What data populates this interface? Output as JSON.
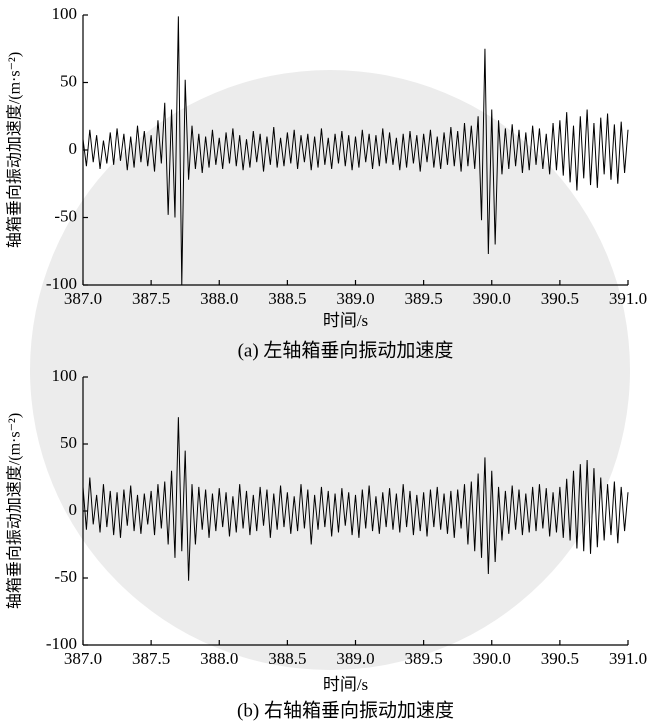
{
  "chart_data": [
    {
      "type": "line",
      "caption": "(a) 左轴箱垂向振动加速度",
      "xlabel": "时间/s",
      "ylabel": "轴箱垂向振动加速度/(m·s⁻²)",
      "color": "#000000",
      "xlim": [
        387,
        391
      ],
      "ylim": [
        -100,
        100
      ],
      "xticks": [
        {
          "value": 387,
          "label": "387.0"
        },
        387.5,
        {
          "value": 388,
          "label": "388.0"
        },
        388.5,
        {
          "value": 389,
          "label": "389.0"
        },
        389.5,
        {
          "value": 390,
          "label": "390.0"
        },
        390.5,
        {
          "value": 391,
          "label": "391.0"
        }
      ],
      "yticks": [
        -100,
        -50,
        0,
        50,
        100
      ],
      "x": [
        387,
        387.025,
        387.05,
        387.075,
        387.1,
        387.125,
        387.15,
        387.175,
        387.2,
        387.225,
        387.25,
        387.275,
        387.3,
        387.325,
        387.35,
        387.375,
        387.4,
        387.425,
        387.45,
        387.475,
        387.5,
        387.525,
        387.55,
        387.575,
        387.6,
        387.625,
        387.65,
        387.675,
        387.7,
        387.725,
        387.75,
        387.775,
        387.8,
        387.825,
        387.85,
        387.875,
        387.9,
        387.925,
        387.95,
        387.975,
        388,
        388.025,
        388.05,
        388.075,
        388.1,
        388.125,
        388.15,
        388.175,
        388.2,
        388.225,
        388.25,
        388.275,
        388.3,
        388.325,
        388.35,
        388.375,
        388.4,
        388.425,
        388.45,
        388.475,
        388.5,
        388.525,
        388.55,
        388.575,
        388.6,
        388.625,
        388.65,
        388.675,
        388.7,
        388.725,
        388.75,
        388.775,
        388.8,
        388.825,
        388.85,
        388.875,
        388.9,
        388.925,
        388.95,
        388.975,
        389,
        389.025,
        389.05,
        389.075,
        389.1,
        389.125,
        389.15,
        389.175,
        389.2,
        389.225,
        389.25,
        389.275,
        389.3,
        389.325,
        389.35,
        389.375,
        389.4,
        389.425,
        389.45,
        389.475,
        389.5,
        389.525,
        389.55,
        389.575,
        389.6,
        389.625,
        389.65,
        389.675,
        389.7,
        389.725,
        389.75,
        389.775,
        389.8,
        389.825,
        389.85,
        389.875,
        389.9,
        389.925,
        389.95,
        389.975,
        390,
        390.025,
        390.05,
        390.075,
        390.1,
        390.125,
        390.15,
        390.175,
        390.2,
        390.225,
        390.25,
        390.275,
        390.3,
        390.325,
        390.35,
        390.375,
        390.4,
        390.425,
        390.45,
        390.475,
        390.5,
        390.525,
        390.55,
        390.575,
        390.6,
        390.625,
        390.65,
        390.675,
        390.7,
        390.725,
        390.75,
        390.775,
        390.8,
        390.825,
        390.85,
        390.875,
        390.9,
        390.925,
        390.95,
        390.975,
        391
      ],
      "values": [
        8,
        -12,
        15,
        -9,
        11,
        -14,
        7,
        -10,
        13,
        -11,
        16,
        -8,
        12,
        -15,
        10,
        -13,
        18,
        -9,
        14,
        -12,
        11,
        -16,
        22,
        -10,
        35,
        -48,
        30,
        -50,
        99,
        -100,
        52,
        -22,
        18,
        -14,
        12,
        -17,
        10,
        -13,
        15,
        -11,
        9,
        -14,
        13,
        -10,
        16,
        -12,
        11,
        -15,
        8,
        -13,
        14,
        -9,
        12,
        -16,
        10,
        -11,
        17,
        -13,
        9,
        -12,
        13,
        -10,
        15,
        -14,
        11,
        -9,
        12,
        -15,
        10,
        -13,
        16,
        -11,
        9,
        -14,
        12,
        -10,
        14,
        -12,
        11,
        -15,
        10,
        -13,
        15,
        -9,
        12,
        -14,
        11,
        -12,
        16,
        -10,
        13,
        -11,
        9,
        -15,
        12,
        -13,
        14,
        -10,
        11,
        -16,
        12,
        -9,
        15,
        -13,
        10,
        -14,
        13,
        -11,
        17,
        -12,
        14,
        -16,
        20,
        -12,
        18,
        -14,
        25,
        -52,
        75,
        -77,
        30,
        -70,
        22,
        -18,
        16,
        -14,
        19,
        -12,
        15,
        -17,
        13,
        -15,
        18,
        -11,
        16,
        -14,
        12,
        -18,
        20,
        -15,
        22,
        -19,
        28,
        -24,
        18,
        -30,
        25,
        -21,
        30,
        -26,
        20,
        -28,
        24,
        -18,
        27,
        -22,
        19,
        -25,
        21,
        -17,
        15
      ]
    },
    {
      "type": "line",
      "caption": "(b) 右轴箱垂向振动加速度",
      "xlabel": "时间/s",
      "ylabel": "轴箱垂向振动加速度/(m·s⁻²)",
      "color": "#000000",
      "xlim": [
        387,
        391
      ],
      "ylim": [
        -100,
        100
      ],
      "xticks": [
        {
          "value": 387,
          "label": "387.0"
        },
        387.5,
        {
          "value": 388,
          "label": "388.0"
        },
        388.5,
        {
          "value": 389,
          "label": "389.0"
        },
        389.5,
        {
          "value": 390,
          "label": "390.0"
        },
        390.5,
        {
          "value": 391,
          "label": "391.0"
        }
      ],
      "yticks": [
        -100,
        -50,
        0,
        50,
        100
      ],
      "x": [
        387,
        387.025,
        387.05,
        387.075,
        387.1,
        387.125,
        387.15,
        387.175,
        387.2,
        387.225,
        387.25,
        387.275,
        387.3,
        387.325,
        387.35,
        387.375,
        387.4,
        387.425,
        387.45,
        387.475,
        387.5,
        387.525,
        387.55,
        387.575,
        387.6,
        387.625,
        387.65,
        387.675,
        387.7,
        387.725,
        387.75,
        387.775,
        387.8,
        387.825,
        387.85,
        387.875,
        387.9,
        387.925,
        387.95,
        387.975,
        388,
        388.025,
        388.05,
        388.075,
        388.1,
        388.125,
        388.15,
        388.175,
        388.2,
        388.225,
        388.25,
        388.275,
        388.3,
        388.325,
        388.35,
        388.375,
        388.4,
        388.425,
        388.45,
        388.475,
        388.5,
        388.525,
        388.55,
        388.575,
        388.6,
        388.625,
        388.65,
        388.675,
        388.7,
        388.725,
        388.75,
        388.775,
        388.8,
        388.825,
        388.85,
        388.875,
        388.9,
        388.925,
        388.95,
        388.975,
        389,
        389.025,
        389.05,
        389.075,
        389.1,
        389.125,
        389.15,
        389.175,
        389.2,
        389.225,
        389.25,
        389.275,
        389.3,
        389.325,
        389.35,
        389.375,
        389.4,
        389.425,
        389.45,
        389.475,
        389.5,
        389.525,
        389.55,
        389.575,
        389.6,
        389.625,
        389.65,
        389.675,
        389.7,
        389.725,
        389.75,
        389.775,
        389.8,
        389.825,
        389.85,
        389.875,
        389.9,
        389.925,
        389.95,
        389.975,
        390,
        390.025,
        390.05,
        390.075,
        390.1,
        390.125,
        390.15,
        390.175,
        390.2,
        390.225,
        390.25,
        390.275,
        390.3,
        390.325,
        390.35,
        390.375,
        390.4,
        390.425,
        390.45,
        390.475,
        390.5,
        390.525,
        390.55,
        390.575,
        390.6,
        390.625,
        390.65,
        390.675,
        390.7,
        390.725,
        390.75,
        390.775,
        390.8,
        390.825,
        390.85,
        390.875,
        390.9,
        390.925,
        390.95,
        390.975,
        391
      ],
      "values": [
        18,
        -14,
        25,
        -10,
        12,
        -16,
        20,
        -12,
        15,
        -18,
        14,
        -20,
        16,
        -11,
        19,
        -15,
        12,
        -17,
        13,
        -10,
        15,
        -18,
        20,
        -13,
        22,
        -25,
        30,
        -35,
        70,
        -30,
        45,
        -52,
        20,
        -25,
        18,
        -14,
        16,
        -20,
        13,
        -15,
        17,
        -12,
        14,
        -19,
        11,
        -16,
        20,
        -13,
        15,
        -18,
        12,
        -15,
        18,
        -11,
        16,
        -20,
        13,
        -14,
        19,
        -12,
        14,
        -17,
        11,
        -15,
        20,
        -13,
        16,
        -25,
        12,
        -14,
        18,
        -12,
        15,
        -19,
        13,
        -16,
        17,
        -11,
        14,
        -18,
        12,
        -20,
        16,
        -13,
        19,
        -15,
        11,
        -17,
        14,
        -12,
        17,
        -14,
        13,
        -16,
        20,
        -12,
        15,
        -18,
        12,
        -15,
        14,
        -19,
        16,
        -12,
        18,
        -14,
        13,
        -17,
        15,
        -20,
        16,
        -13,
        20,
        -25,
        22,
        -30,
        28,
        -35,
        40,
        -47,
        30,
        -38,
        18,
        -22,
        15,
        -17,
        19,
        -14,
        16,
        -18,
        13,
        -16,
        18,
        -15,
        20,
        -13,
        17,
        -19,
        14,
        -16,
        18,
        -20,
        24,
        -22,
        30,
        -28,
        35,
        -30,
        38,
        -32,
        32,
        -27,
        25,
        -22,
        20,
        -18,
        22,
        -24,
        18,
        -15,
        14
      ]
    }
  ]
}
